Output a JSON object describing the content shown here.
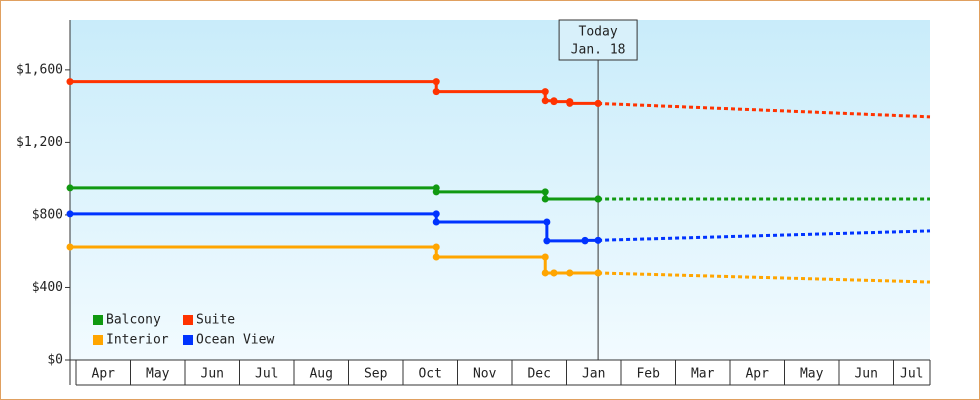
{
  "chart_data": {
    "type": "step-line",
    "xlim": [
      -0.11,
      15.67
    ],
    "ylim": [
      0,
      1875
    ],
    "xticks": [
      {
        "value": 0,
        "label": "Apr"
      },
      {
        "value": 1,
        "label": "May"
      },
      {
        "value": 2,
        "label": "Jun"
      },
      {
        "value": 3,
        "label": "Jul"
      },
      {
        "value": 4,
        "label": "Aug"
      },
      {
        "value": 5,
        "label": "Sep"
      },
      {
        "value": 6,
        "label": "Oct"
      },
      {
        "value": 7,
        "label": "Nov"
      },
      {
        "value": 8,
        "label": "Dec"
      },
      {
        "value": 9,
        "label": "Jan"
      },
      {
        "value": 10,
        "label": "Feb"
      },
      {
        "value": 11,
        "label": "Mar"
      },
      {
        "value": 12,
        "label": "Apr"
      },
      {
        "value": 13,
        "label": "May"
      },
      {
        "value": 14,
        "label": "Jun"
      },
      {
        "value": 15,
        "label": "Jul"
      }
    ],
    "yticks": [
      {
        "value": 0,
        "label": "$0"
      },
      {
        "value": 400,
        "label": "$400"
      },
      {
        "value": 800,
        "label": "$800"
      },
      {
        "value": 1200,
        "label": "$1,200"
      },
      {
        "value": 1600,
        "label": "$1,600"
      }
    ],
    "today": {
      "x": 9.58,
      "label": "Today",
      "date": "Jan. 18"
    },
    "legend": "lower-left",
    "series": [
      {
        "name": "Balcony",
        "color": "#119911",
        "x": [
          -0.11,
          6.61,
          8.61,
          9.58
        ],
        "values": [
          949,
          927,
          888,
          888
        ],
        "forecast": {
          "x": [
            9.58,
            15.67
          ],
          "values": [
            888,
            888
          ]
        }
      },
      {
        "name": "Suite",
        "color": "#ff3300",
        "x": [
          -0.11,
          6.61,
          8.61,
          8.77,
          9.06,
          9.58
        ],
        "values": [
          1535,
          1480,
          1430,
          1425,
          1415,
          1415
        ],
        "forecast": {
          "x": [
            9.58,
            15.67
          ],
          "values": [
            1415,
            1341
          ]
        }
      },
      {
        "name": "Interior",
        "color": "#ffa500",
        "x": [
          -0.11,
          6.61,
          8.61,
          8.77,
          9.06,
          9.58
        ],
        "values": [
          623,
          568,
          480,
          480,
          480,
          480
        ],
        "forecast": {
          "x": [
            9.58,
            15.67
          ],
          "values": [
            480,
            430
          ]
        }
      },
      {
        "name": "Ocean View",
        "color": "#0033ff",
        "x": [
          -0.11,
          6.61,
          8.64,
          9.34,
          9.58
        ],
        "values": [
          806,
          761,
          657,
          660,
          660
        ],
        "forecast": {
          "x": [
            9.58,
            15.67
          ],
          "values": [
            660,
            712
          ]
        }
      }
    ]
  }
}
